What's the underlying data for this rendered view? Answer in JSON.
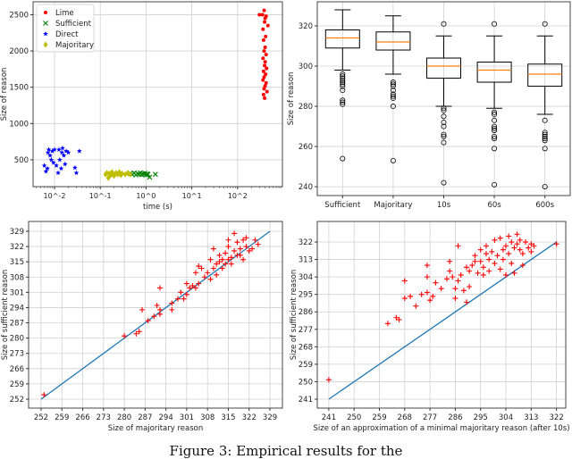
{
  "caption": "Figure 3: Empirical results for the",
  "chart_data": [
    {
      "type": "scatter",
      "xlabel": "time (s)",
      "ylabel": "Size of reason",
      "xscale": "log",
      "xlim": [
        0.0034,
        955
      ],
      "ylim": [
        130,
        2678
      ],
      "xticks": [
        0.01,
        0.1,
        1,
        10,
        100
      ],
      "xtick_labels": [
        "10^-2",
        "10^-1",
        "10^0",
        "10^1",
        "10^2"
      ],
      "yticks": [
        500,
        1000,
        1500,
        2000,
        2500
      ],
      "grid": true,
      "legend": "top-left",
      "series": [
        {
          "name": "Lime",
          "marker": "circle",
          "color": "#ff0000",
          "points": [
            [
              350,
              2500
            ],
            [
              380,
              2560
            ],
            [
              400,
              2450
            ],
            [
              420,
              2480
            ],
            [
              390,
              2400
            ],
            [
              360,
              2300
            ],
            [
              410,
              2200
            ],
            [
              370,
              2150
            ],
            [
              400,
              2050
            ],
            [
              380,
              2000
            ],
            [
              420,
              1950
            ],
            [
              360,
              1900
            ],
            [
              400,
              1850
            ],
            [
              390,
              1800
            ],
            [
              430,
              1760
            ],
            [
              370,
              1720
            ],
            [
              410,
              1680
            ],
            [
              380,
              1640
            ],
            [
              360,
              1600
            ],
            [
              420,
              1560
            ],
            [
              400,
              1520
            ],
            [
              380,
              1480
            ],
            [
              440,
              1440
            ],
            [
              370,
              1400
            ],
            [
              390,
              1350
            ],
            [
              300,
              2500
            ],
            [
              460,
              2350
            ]
          ]
        },
        {
          "name": "Sufficient",
          "marker": "x",
          "color": "#008000",
          "points": [
            [
              0.45,
              310
            ],
            [
              0.5,
              300
            ],
            [
              0.55,
              320
            ],
            [
              0.6,
              290
            ],
            [
              0.65,
              310
            ],
            [
              0.7,
              300
            ],
            [
              0.75,
              320
            ],
            [
              0.8,
              295
            ],
            [
              0.85,
              310
            ],
            [
              0.9,
              300
            ],
            [
              0.95,
              315
            ],
            [
              1.0,
              290
            ],
            [
              1.05,
              305
            ],
            [
              1.1,
              300
            ],
            [
              1.2,
              260
            ],
            [
              1.6,
              300
            ]
          ]
        },
        {
          "name": "Direct",
          "marker": "star",
          "color": "#0000ff",
          "points": [
            [
              0.006,
              420
            ],
            [
              0.0065,
              340
            ],
            [
              0.007,
              380
            ],
            [
              0.0072,
              600
            ],
            [
              0.0075,
              640
            ],
            [
              0.008,
              560
            ],
            [
              0.0085,
              500
            ],
            [
              0.009,
              620
            ],
            [
              0.0095,
              460
            ],
            [
              0.01,
              640
            ],
            [
              0.011,
              420
            ],
            [
              0.012,
              320
            ],
            [
              0.0125,
              640
            ],
            [
              0.013,
              500
            ],
            [
              0.014,
              380
            ],
            [
              0.0145,
              600
            ],
            [
              0.015,
              660
            ],
            [
              0.016,
              560
            ],
            [
              0.017,
              440
            ],
            [
              0.018,
              620
            ],
            [
              0.02,
              600
            ],
            [
              0.028,
              390
            ],
            [
              0.03,
              320
            ],
            [
              0.035,
              620
            ]
          ]
        },
        {
          "name": "Majoritary",
          "marker": "diamond",
          "color": "#bfbf00",
          "points": [
            [
              0.13,
              300
            ],
            [
              0.14,
              320
            ],
            [
              0.15,
              250
            ],
            [
              0.16,
              310
            ],
            [
              0.17,
              290
            ],
            [
              0.18,
              330
            ],
            [
              0.19,
              300
            ],
            [
              0.2,
              280
            ],
            [
              0.22,
              320
            ],
            [
              0.24,
              300
            ],
            [
              0.26,
              330
            ],
            [
              0.28,
              290
            ],
            [
              0.3,
              310
            ],
            [
              0.35,
              300
            ],
            [
              0.4,
              320
            ],
            [
              0.45,
              300
            ]
          ]
        }
      ]
    },
    {
      "type": "box",
      "ylabel": "Size of reason",
      "ylim": [
        235.6,
        332
      ],
      "yticks": [
        240,
        260,
        280,
        300,
        320
      ],
      "grid": true,
      "categories": [
        "Sufficient",
        "Majoritary",
        "10s",
        "60s",
        "600s"
      ],
      "boxes": [
        {
          "whislo": 298,
          "q1": 309,
          "median": 314,
          "q3": 318,
          "whishi": 328,
          "fliers": [
            296,
            295,
            294,
            293,
            292,
            291,
            290,
            288,
            283,
            282,
            281,
            254
          ]
        },
        {
          "whislo": 296,
          "q1": 308,
          "median": 312,
          "q3": 317,
          "whishi": 325,
          "fliers": [
            292,
            291,
            290,
            288,
            286,
            285,
            284,
            280,
            253
          ]
        },
        {
          "whislo": 280,
          "q1": 294,
          "median": 300,
          "q3": 304,
          "whishi": 315,
          "fliers": [
            321,
            279,
            278,
            275,
            272,
            270,
            266,
            265,
            262,
            242
          ]
        },
        {
          "whislo": 279,
          "q1": 292,
          "median": 298,
          "q3": 302,
          "whishi": 315,
          "fliers": [
            321,
            277,
            276,
            273,
            270,
            269,
            268,
            265,
            264,
            259,
            241
          ]
        },
        {
          "whislo": 276,
          "q1": 290,
          "median": 296,
          "q3": 301,
          "whishi": 315,
          "fliers": [
            321,
            273,
            267,
            266,
            265,
            264,
            263,
            259,
            240
          ]
        }
      ],
      "colors": {
        "box": "#000000",
        "median": "#ff7f0e"
      }
    },
    {
      "type": "scatter",
      "xlabel": "Size of majoritary reason",
      "ylabel": "Size of sufficient reason",
      "xlim": [
        247.8,
        333.2
      ],
      "ylim": [
        247.9,
        333.5
      ],
      "xticks": [
        252,
        259,
        266,
        273,
        280,
        287,
        294,
        301,
        308,
        315,
        322,
        329
      ],
      "yticks": [
        252,
        259,
        266,
        273,
        280,
        287,
        294,
        301,
        308,
        315,
        322,
        329
      ],
      "grid": true,
      "reference_line": {
        "from": [
          252,
          252
        ],
        "to": [
          329,
          329
        ],
        "color": "#1f77b4"
      },
      "series": [
        {
          "marker": "plus",
          "color": "#ff0000",
          "points": [
            [
              253,
              254
            ],
            [
              280,
              281
            ],
            [
              284,
              282
            ],
            [
              285,
              283
            ],
            [
              286,
              293
            ],
            [
              288,
              288
            ],
            [
              290,
              290
            ],
            [
              291,
              295
            ],
            [
              292,
              293
            ],
            [
              292,
              291
            ],
            [
              292,
              303
            ],
            [
              296,
              293
            ],
            [
              296,
              296
            ],
            [
              298,
              298
            ],
            [
              299,
              301
            ],
            [
              300,
              298
            ],
            [
              301,
              305
            ],
            [
              301,
              300
            ],
            [
              302,
              303
            ],
            [
              303,
              304
            ],
            [
              304,
              310
            ],
            [
              304,
              303
            ],
            [
              305,
              313
            ],
            [
              305,
              305
            ],
            [
              306,
              312
            ],
            [
              307,
              308
            ],
            [
              308,
              310
            ],
            [
              309,
              316
            ],
            [
              309,
              307
            ],
            [
              310,
              321
            ],
            [
              310,
              312
            ],
            [
              311,
              314
            ],
            [
              311,
              309
            ],
            [
              312,
              318
            ],
            [
              312,
              315
            ],
            [
              313,
              312
            ],
            [
              313,
              316
            ],
            [
              314,
              319
            ],
            [
              314,
              314
            ],
            [
              315,
              325
            ],
            [
              315,
              322
            ],
            [
              315,
              316
            ],
            [
              316,
              317
            ],
            [
              316,
              314
            ],
            [
              317,
              328
            ],
            [
              317,
              320
            ],
            [
              318,
              318
            ],
            [
              318,
              324
            ],
            [
              319,
              321
            ],
            [
              319,
              318
            ],
            [
              320,
              316
            ],
            [
              320,
              325
            ],
            [
              321,
              326
            ],
            [
              321,
              322
            ],
            [
              322,
              320
            ],
            [
              323,
              321
            ],
            [
              324,
              325
            ],
            [
              325,
              323
            ]
          ]
        }
      ]
    },
    {
      "type": "scatter",
      "xlabel": "Size of an approximation of a minimal majoritary reason (after 10s)",
      "ylabel": "Size of sufficient reason",
      "xlim": [
        236.9,
        325.3
      ],
      "ylim": [
        236.4,
        332.6
      ],
      "xticks": [
        241,
        250,
        259,
        268,
        277,
        286,
        295,
        304,
        313,
        322
      ],
      "yticks": [
        241,
        250,
        259,
        268,
        277,
        286,
        295,
        304,
        313,
        322
      ],
      "grid": true,
      "reference_line": {
        "from": [
          241,
          241
        ],
        "to": [
          322,
          322
        ],
        "color": "#1f77b4"
      },
      "series": [
        {
          "marker": "plus",
          "color": "#ff0000",
          "points": [
            [
              241,
              251
            ],
            [
              262,
              280
            ],
            [
              265,
              283
            ],
            [
              266,
              282
            ],
            [
              268,
              293
            ],
            [
              268,
              302
            ],
            [
              270,
              294
            ],
            [
              272,
              289
            ],
            [
              274,
              295
            ],
            [
              276,
              296
            ],
            [
              276,
              304
            ],
            [
              276,
              310
            ],
            [
              277,
              292
            ],
            [
              278,
              294
            ],
            [
              279,
              301
            ],
            [
              281,
              298
            ],
            [
              283,
              303
            ],
            [
              284,
              312
            ],
            [
              284,
              307
            ],
            [
              285,
              304
            ],
            [
              286,
              298
            ],
            [
              286,
              293
            ],
            [
              287,
              320
            ],
            [
              287,
              302
            ],
            [
              288,
              305
            ],
            [
              289,
              297
            ],
            [
              290,
              309
            ],
            [
              290,
              291
            ],
            [
              291,
              299
            ],
            [
              291,
              307
            ],
            [
              292,
              310
            ],
            [
              293,
              312
            ],
            [
              293,
              315
            ],
            [
              294,
              306
            ],
            [
              295,
              318
            ],
            [
              295,
              312
            ],
            [
              296,
              309
            ],
            [
              296,
              305
            ],
            [
              297,
              316
            ],
            [
              297,
              320
            ],
            [
              298,
              313
            ],
            [
              298,
              307
            ],
            [
              299,
              317
            ],
            [
              300,
              323
            ],
            [
              300,
              311
            ],
            [
              301,
              315
            ],
            [
              302,
              308
            ],
            [
              302,
              324
            ],
            [
              303,
              318
            ],
            [
              303,
              313
            ],
            [
              304,
              305
            ],
            [
              304,
              320
            ],
            [
              305,
              325
            ],
            [
              305,
              316
            ],
            [
              306,
              322
            ],
            [
              306,
              311
            ],
            [
              307,
              319
            ],
            [
              307,
              306
            ],
            [
              308,
              326
            ],
            [
              308,
              321
            ],
            [
              309,
              323
            ],
            [
              309,
              318
            ],
            [
              310,
              316
            ],
            [
              310,
              310
            ],
            [
              311,
              322
            ],
            [
              312,
              319
            ],
            [
              313,
              321
            ],
            [
              313,
              317
            ],
            [
              314,
              320
            ],
            [
              322,
              321
            ]
          ]
        }
      ]
    }
  ]
}
